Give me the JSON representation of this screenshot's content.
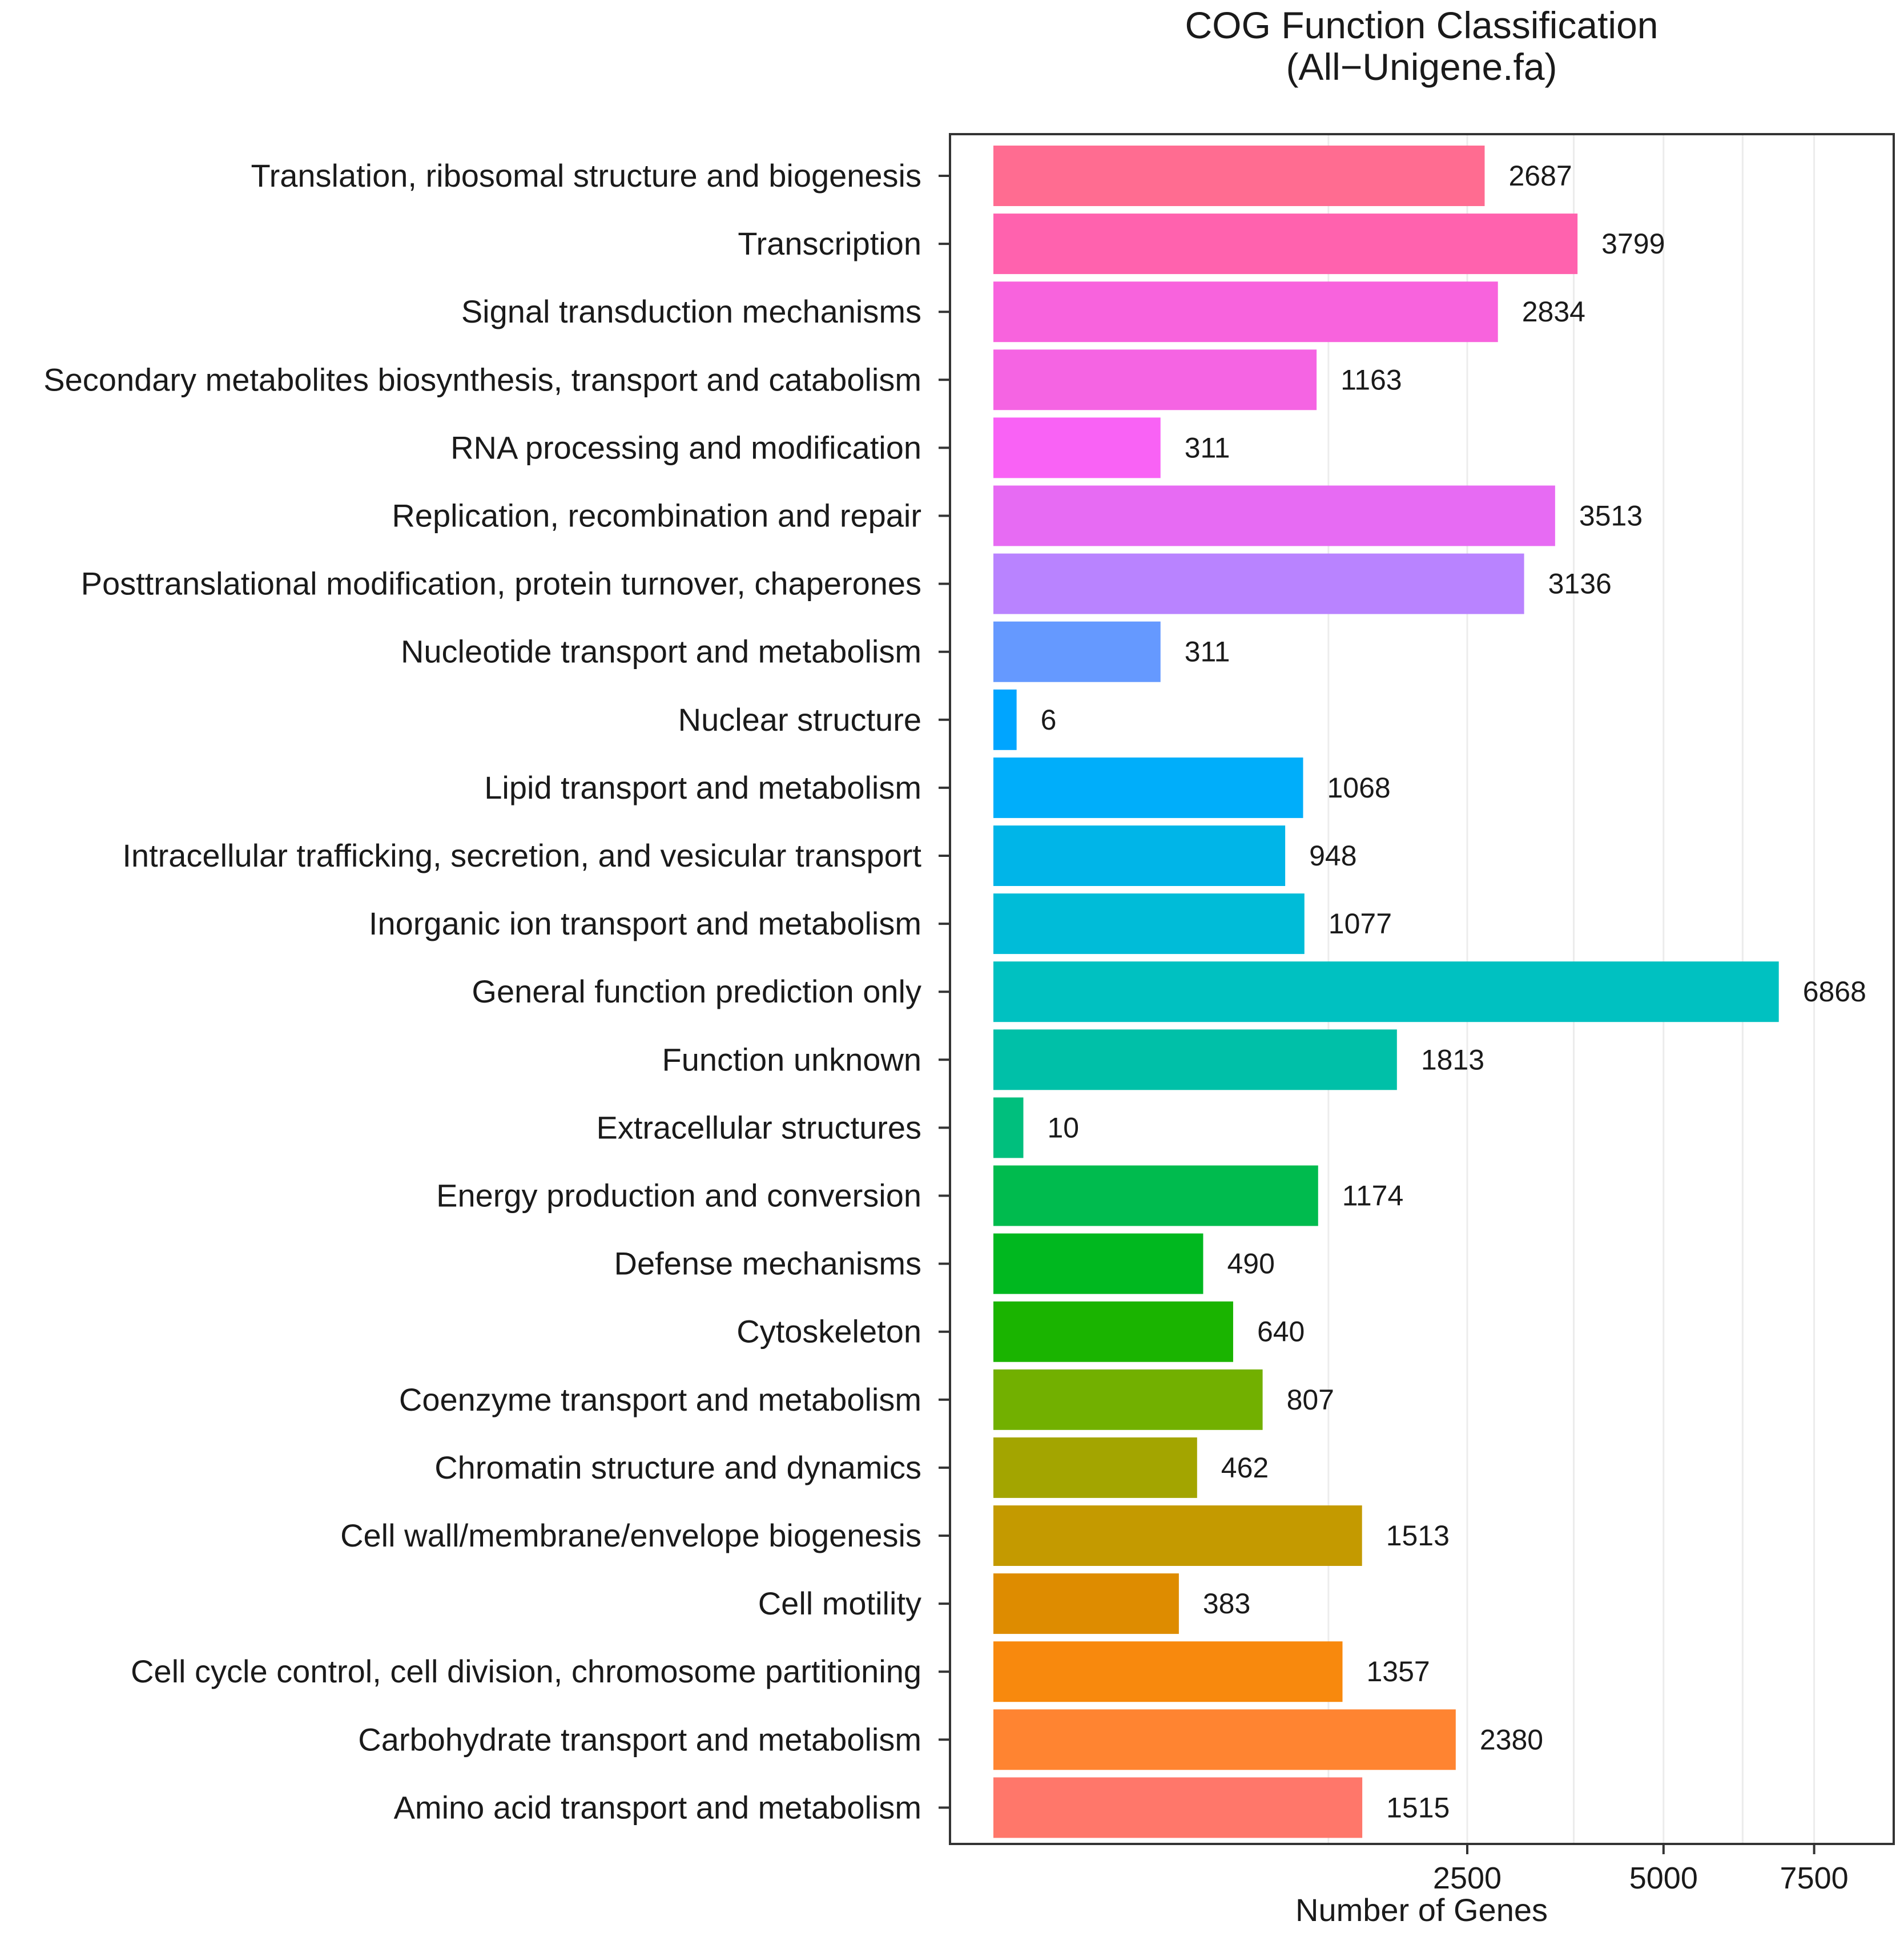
{
  "chart_data": {
    "type": "bar",
    "orientation": "horizontal",
    "title": "COG Function Classification",
    "subtitle": "(All−Unigene.fa)",
    "xlabel": "Number of Genes",
    "ylabel": "",
    "x_scale": "sqrt",
    "xlim": [
      0,
      9000
    ],
    "x_ticks": [
      2500,
      5000,
      7500
    ],
    "x_tick_labels": [
      "2500",
      "5000",
      "7500"
    ],
    "grid": true,
    "categories": [
      "Translation, ribosomal structure and biogenesis",
      "Transcription",
      "Signal transduction mechanisms",
      "Secondary metabolites biosynthesis, transport and catabolism",
      "RNA processing and modification",
      "Replication, recombination and repair",
      "Posttranslational modification, protein turnover, chaperones",
      "Nucleotide transport and metabolism",
      "Nuclear structure",
      "Lipid transport and metabolism",
      "Intracellular trafficking, secretion, and vesicular transport",
      "Inorganic ion transport and metabolism",
      "General function prediction only",
      "Function unknown",
      "Extracellular structures",
      "Energy production and conversion",
      "Defense mechanisms",
      "Cytoskeleton",
      "Coenzyme transport and metabolism",
      "Chromatin structure and dynamics",
      "Cell wall/membrane/envelope biogenesis",
      "Cell motility",
      "Cell cycle control, cell division, chromosome partitioning",
      "Carbohydrate transport and metabolism",
      "Amino acid transport and metabolism"
    ],
    "values": [
      2687,
      3799,
      2834,
      1163,
      311,
      3513,
      3136,
      311,
      6,
      1068,
      948,
      1077,
      6868,
      1813,
      10,
      1174,
      490,
      640,
      807,
      462,
      1513,
      383,
      1357,
      2380,
      1515
    ],
    "colors": [
      "#FF6C91",
      "#FF62AE",
      "#F863DD",
      "#F564E3",
      "#F962F5",
      "#E76BF3",
      "#B983FF",
      "#6599FF",
      "#00A5FF",
      "#00AEFA",
      "#00B5E8",
      "#00BCD8",
      "#00C1C1",
      "#00C0A8",
      "#00BF7D",
      "#00BB4E",
      "#00B81F",
      "#1AB400",
      "#72B000",
      "#A3A500",
      "#C49A00",
      "#DE8C00",
      "#F8890D",
      "#FF8431",
      "#FF776A"
    ],
    "value_labels": [
      "2687",
      "3799",
      "2834",
      "1163",
      "311",
      "3513",
      "3136",
      "311",
      "6",
      "1068",
      "948",
      "1077",
      "6868",
      "1813",
      "10",
      "1174",
      "490",
      "640",
      "807",
      "462",
      "1513",
      "383",
      "1357",
      "2380",
      "1515"
    ]
  }
}
